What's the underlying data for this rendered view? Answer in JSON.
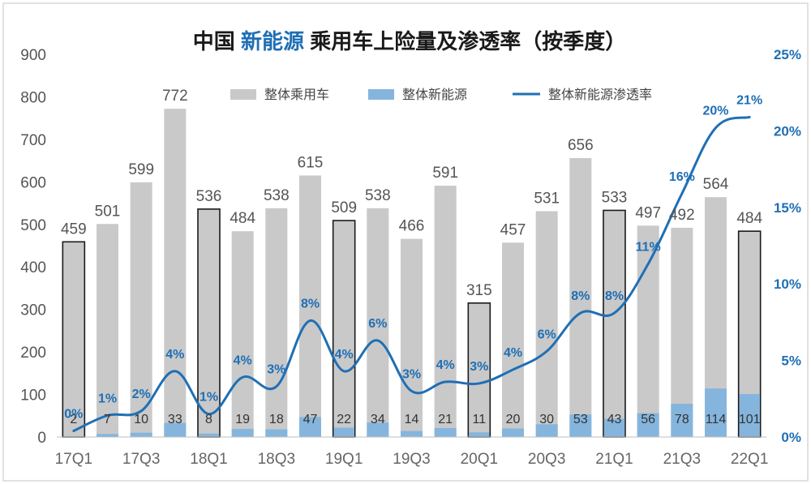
{
  "title": {
    "prefix": "中国 ",
    "accent": "新能源",
    "suffix": " 乘用车上险量及渗透率（按季度）"
  },
  "colors": {
    "total_bar": "#c9c9c9",
    "nev_bar": "#85b5dd",
    "line": "#1f6fb5",
    "pct_label": "#1f6fb5",
    "outline": "#1a1a1a",
    "frame": "#d9d9d9"
  },
  "chart_data": {
    "type": "bar",
    "categories": [
      "17Q1",
      "17Q2",
      "17Q3",
      "17Q4",
      "18Q1",
      "18Q2",
      "18Q3",
      "18Q4",
      "19Q1",
      "19Q2",
      "19Q3",
      "19Q4",
      "20Q1",
      "20Q2",
      "20Q3",
      "20Q4",
      "21Q1",
      "21Q2",
      "21Q3",
      "21Q4",
      "22Q1"
    ],
    "x_tick_labels": [
      "17Q1",
      "",
      "17Q3",
      "",
      "18Q1",
      "",
      "18Q3",
      "",
      "19Q1",
      "",
      "19Q3",
      "",
      "20Q1",
      "",
      "20Q3",
      "",
      "21Q1",
      "",
      "21Q3",
      "",
      "22Q1"
    ],
    "outlined_categories": [
      "17Q1",
      "18Q1",
      "19Q1",
      "20Q1",
      "21Q1",
      "22Q1"
    ],
    "series": [
      {
        "name": "整体乘用车",
        "type": "bar",
        "axis": "left",
        "values": [
          459,
          501,
          599,
          772,
          536,
          484,
          538,
          615,
          509,
          538,
          466,
          591,
          315,
          457,
          531,
          656,
          533,
          497,
          492,
          564,
          484
        ]
      },
      {
        "name": "整体新能源",
        "type": "bar",
        "axis": "left",
        "values": [
          2,
          7,
          10,
          33,
          8,
          19,
          18,
          47,
          22,
          34,
          14,
          21,
          11,
          20,
          30,
          53,
          43,
          56,
          78,
          114,
          101
        ]
      },
      {
        "name": "整体新能源渗透率",
        "type": "line",
        "axis": "right",
        "values": [
          0.4,
          1.4,
          1.7,
          4.3,
          1.5,
          3.9,
          3.3,
          7.6,
          4.3,
          6.3,
          3.0,
          3.6,
          3.5,
          4.4,
          5.6,
          8.1,
          8.1,
          11.3,
          15.9,
          20.2,
          20.9
        ],
        "labels": [
          "0%",
          "1%",
          "2%",
          "4%",
          "1%",
          "4%",
          "3%",
          "8%",
          "4%",
          "6%",
          "3%",
          "4%",
          "3%",
          "4%",
          "6%",
          "8%",
          "8%",
          "11%",
          "16%",
          "20%",
          "21%"
        ]
      }
    ],
    "ylim_left": [
      0,
      900
    ],
    "yticks_left": [
      "0",
      "100",
      "200",
      "300",
      "400",
      "500",
      "600",
      "700",
      "800",
      "900"
    ],
    "ylim_right": [
      0,
      25
    ],
    "yticks_right": [
      "0%",
      "5%",
      "10%",
      "15%",
      "20%",
      "25%"
    ],
    "legend_position": "top-center",
    "grid": false
  }
}
